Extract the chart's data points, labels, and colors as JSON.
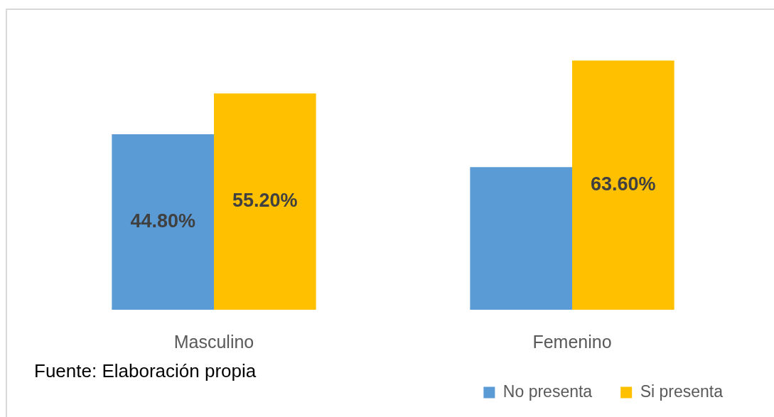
{
  "chart_data": {
    "type": "bar",
    "categories": [
      "Masculino",
      "Femenino"
    ],
    "series": [
      {
        "name": "No presenta",
        "color": "#5b9bd5",
        "values": [
          44.8,
          36.4
        ],
        "value_labels": [
          "44.80%",
          null
        ]
      },
      {
        "name": "Si presenta",
        "color": "#ffc000",
        "values": [
          55.2,
          63.6
        ],
        "value_labels": [
          "55.20%",
          "63.60%"
        ]
      }
    ],
    "legend": "bottom right",
    "tick_labels": "x",
    "annotations": [
      "Fuente: Elaboración propia"
    ]
  }
}
